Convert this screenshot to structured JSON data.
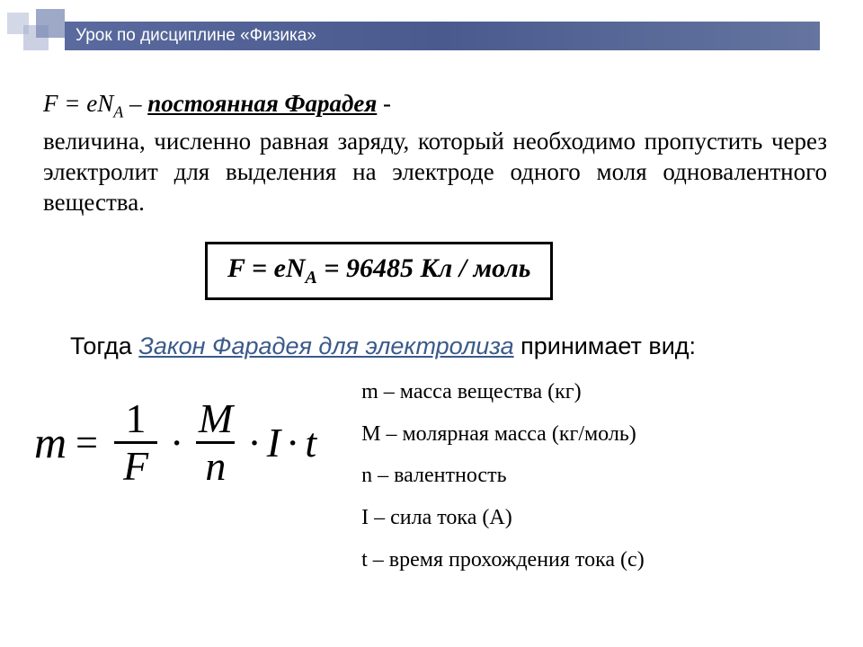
{
  "header": {
    "title": "Урок по дисциплине «Физика»",
    "bar_gradient_from": "#5a6a9e",
    "bar_gradient_to": "#6575a0",
    "text_color": "#ffffff"
  },
  "deco": {
    "square_color_light": "#a8b2d0",
    "square_color_dark": "#7585b0"
  },
  "faraday_def": {
    "formula_lhs": "F = eN",
    "formula_sub": "A",
    "dash": " – ",
    "name": "постоянная Фарадея",
    "trailing": " -",
    "description": "величина, численно равная заряду, который необходимо пропустить через электролит для выделения на электроде одного моля одновалентного вещества."
  },
  "boxed_formula": {
    "lhs": "F = eN",
    "sub": "A",
    "rhs": " = 96485 Кл / моль",
    "border_color": "#000000",
    "fontsize": 30
  },
  "then": {
    "prefix": "Тогда ",
    "law": "Закон Фарадея для электролиза",
    "suffix": " принимает вид:",
    "link_color": "#3a5a8a"
  },
  "main_formula": {
    "m": "m",
    "eq": "=",
    "frac1_num": "1",
    "frac1_den": "F",
    "dot": "·",
    "frac2_num": "M",
    "frac2_den": "n",
    "I": "I",
    "t": "t",
    "fontsize": 46
  },
  "legend": {
    "items": [
      "m – масса вещества (кг)",
      "M – молярная масса (кг/моль)",
      "n – валентность",
      "I – сила тока (А)",
      "t – время прохождения тока (с)"
    ],
    "fontsize": 24
  },
  "colors": {
    "background": "#ffffff",
    "text": "#000000"
  }
}
